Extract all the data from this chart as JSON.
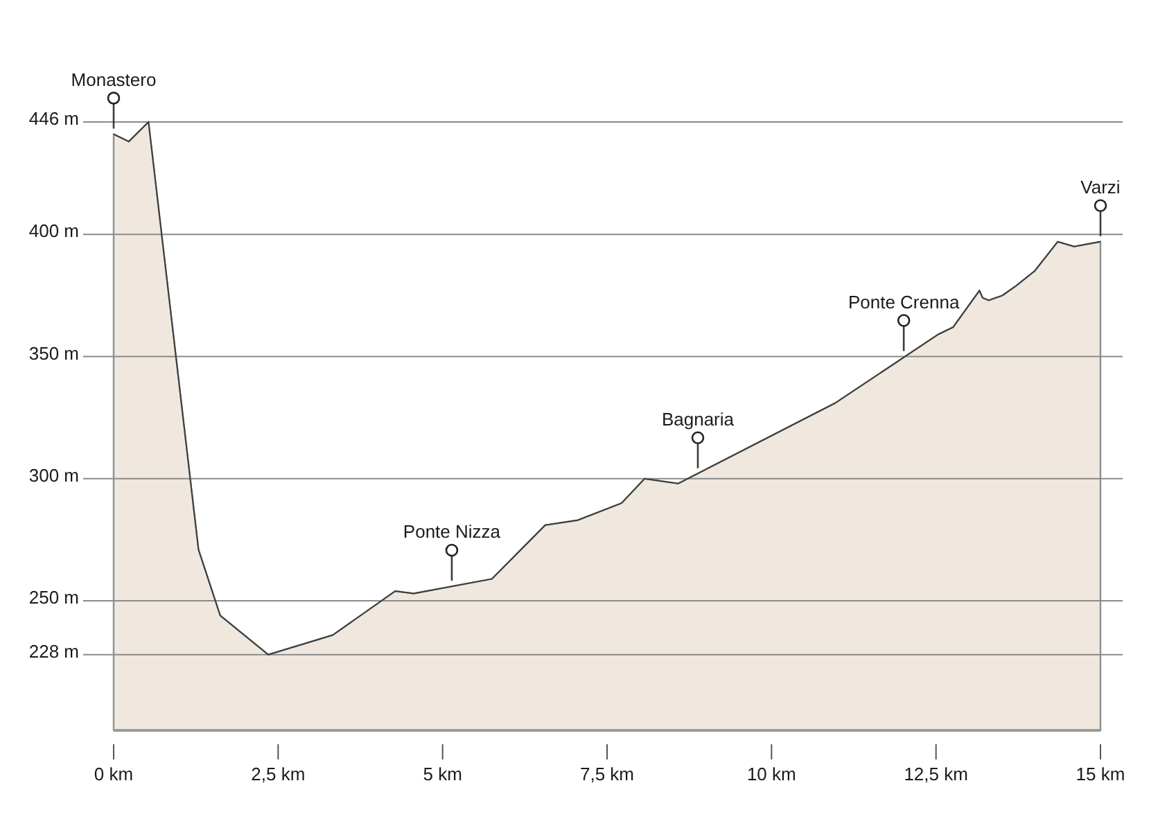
{
  "chart_data": {
    "type": "area",
    "x": [
      0,
      0.23,
      0.53,
      1.29,
      1.62,
      2.35,
      3.33,
      4.28,
      4.56,
      5.75,
      6.56,
      7.05,
      7.72,
      8.07,
      8.58,
      10.97,
      12.53,
      12.76,
      13.16,
      13.21,
      13.3,
      13.51,
      13.72,
      14.0,
      14.35,
      14.6,
      15
    ],
    "values": [
      441,
      438,
      446,
      271,
      244,
      228,
      236,
      254,
      253,
      259,
      281,
      283,
      290,
      300,
      298,
      331,
      359,
      362,
      377,
      374,
      373,
      375,
      379,
      385,
      397,
      395,
      397
    ],
    "color": "#f0e8de",
    "xlim": [
      0,
      15
    ],
    "ylim": [
      197,
      446
    ],
    "xticks": [
      {
        "value": 0,
        "label": "0 km"
      },
      {
        "value": 2.5,
        "label": "2,5 km"
      },
      {
        "value": 5,
        "label": "5 km"
      },
      {
        "value": 7.5,
        "label": "7,5 km"
      },
      {
        "value": 10,
        "label": "10 km"
      },
      {
        "value": 12.5,
        "label": "12,5 km"
      },
      {
        "value": 15,
        "label": "15 km"
      }
    ],
    "yticks": [
      {
        "value": 228,
        "label": "228 m"
      },
      {
        "value": 250,
        "label": "250 m"
      },
      {
        "value": 300,
        "label": "300 m"
      },
      {
        "value": 350,
        "label": "350 m"
      },
      {
        "value": 400,
        "label": "400 m"
      },
      {
        "value": 446,
        "label": "446 m"
      }
    ],
    "grid": "y",
    "annotations": [
      {
        "text": "Monastero",
        "x": 0,
        "y": 441
      },
      {
        "text": "Ponte Nizza",
        "x": 5.14,
        "y": 256
      },
      {
        "text": "Bagnaria",
        "x": 8.88,
        "y": 302
      },
      {
        "text": "Ponte Crenna",
        "x": 12.01,
        "y": 350
      },
      {
        "text": "Varzi",
        "x": 15,
        "y": 397
      }
    ]
  }
}
